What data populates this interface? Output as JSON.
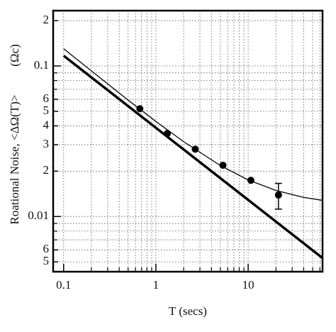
{
  "chart_data": {
    "type": "scatter",
    "x_label": "T (secs)",
    "y_label": "Roational Noise, <ΔΩ(T)>",
    "y_unit": "(Ωc)",
    "log_x": true,
    "log_y": true,
    "grid": true,
    "xlim": [
      0.077,
      64
    ],
    "ylim": [
      0.0043,
      0.233
    ],
    "xticks": [
      0.1,
      1,
      10
    ],
    "xminorticks": [
      0.2,
      0.3,
      0.4,
      0.5,
      0.6,
      0.7,
      0.8,
      0.9,
      2,
      3,
      4,
      5,
      6,
      7,
      8,
      9,
      20,
      30,
      40,
      50,
      60
    ],
    "yticks": [
      {
        "value": 0.2,
        "label": "2"
      },
      0.1,
      {
        "value": 0.06,
        "label": "6"
      },
      {
        "value": 0.05,
        "label": "5"
      },
      {
        "value": 0.04,
        "label": "4"
      },
      {
        "value": 0.03,
        "label": "3"
      },
      {
        "value": 0.02,
        "label": "2"
      },
      0.01,
      {
        "value": 0.006,
        "label": "6"
      },
      {
        "value": 0.005,
        "label": "5"
      }
    ],
    "yminorticks": [
      0.09,
      0.08,
      0.07,
      0.009,
      0.008,
      0.007
    ],
    "points": {
      "color": "#000000",
      "x": [
        0.67,
        1.33,
        2.67,
        5.33,
        10.7,
        21.3
      ],
      "values": [
        0.052,
        0.0356,
        0.028,
        0.0219,
        0.0174,
        0.0139
      ],
      "errors": [
        null,
        null,
        null,
        null,
        null,
        0.0027
      ]
    },
    "lines": [
      {
        "color": "#000000",
        "x": [
          0.1,
          64
        ],
        "values": [
          0.117,
          0.0053
        ],
        "width": 3.5
      },
      {
        "color": "#000000",
        "x": [
          0.1,
          0.2,
          0.5,
          1,
          2,
          5,
          10,
          20,
          40,
          64
        ],
        "values": [
          0.13,
          0.0927,
          0.0593,
          0.0428,
          0.0314,
          0.0218,
          0.0175,
          0.0149,
          0.0134,
          0.0128
        ],
        "width": 1.3
      }
    ]
  }
}
